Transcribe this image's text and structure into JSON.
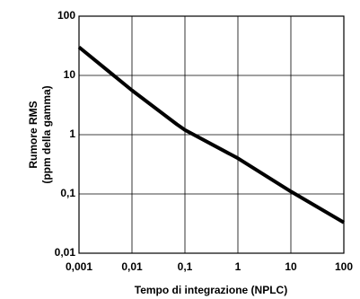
{
  "chart_data": {
    "type": "line",
    "xlabel": "Tempo di integrazione (NPLC)",
    "ylabel": [
      "Rumore RMS",
      "(ppm della gamma)"
    ],
    "x": [
      0.001,
      0.01,
      0.07,
      0.1,
      1,
      10,
      100
    ],
    "values": [
      30,
      5.6,
      1.5,
      1.2,
      0.4,
      0.11,
      0.033
    ],
    "color": "#000000",
    "xscale": "log",
    "yscale": "log",
    "xlim": [
      0.001,
      100
    ],
    "ylim": [
      0.01,
      100
    ],
    "xticks": [
      {
        "value": 0.001,
        "label": "0,001"
      },
      {
        "value": 0.01,
        "label": "0,01"
      },
      {
        "value": 0.1,
        "label": "0,1"
      },
      1,
      10,
      100
    ],
    "yticks": [
      {
        "value": 0.01,
        "label": "0,01"
      },
      {
        "value": 0.1,
        "label": "0,1"
      },
      1,
      10,
      100
    ],
    "grid": true
  }
}
